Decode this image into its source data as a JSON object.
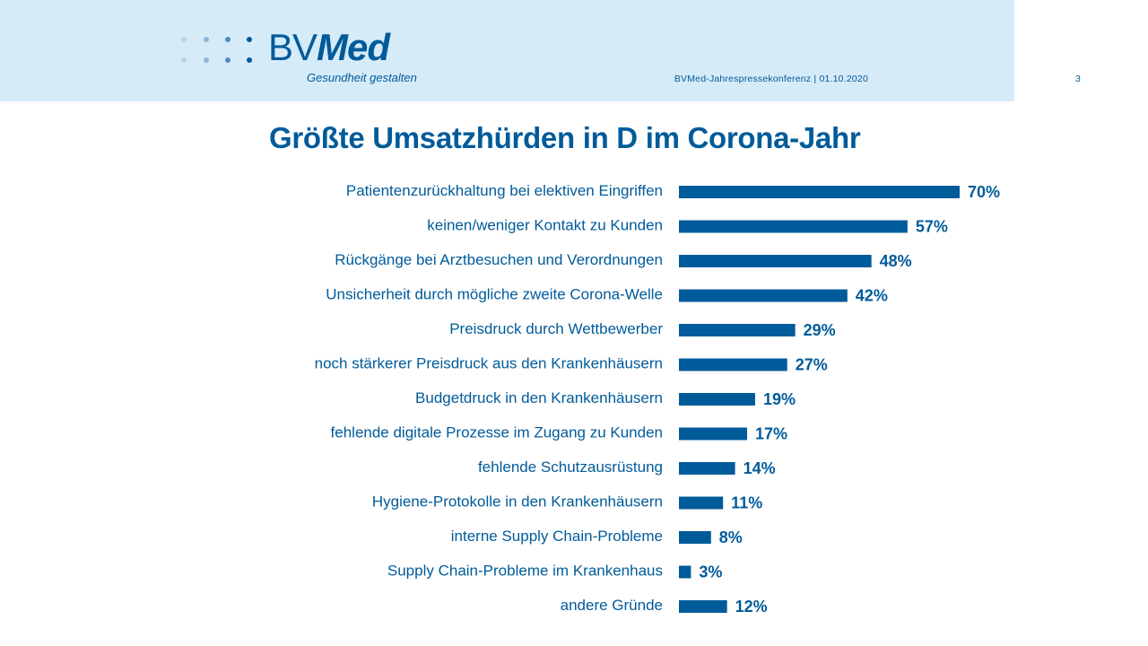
{
  "header": {
    "logo_prefix": "BV",
    "logo_suffix": "Med",
    "tagline": "Gesundheit gestalten",
    "event": "BVMed-Jahrespressekonferenz | 01.10.2020",
    "page_number": "3"
  },
  "colors": {
    "brand": "#005b9a",
    "header_band": "#d6ebf8",
    "bar": "#005b9a"
  },
  "chart_data": {
    "type": "bar",
    "orientation": "horizontal",
    "title": "Größte Umsatzhürden in D im Corona-Jahr",
    "xlabel": "",
    "ylabel": "",
    "unit": "%",
    "xlim": [
      0,
      70
    ],
    "grid": false,
    "legend": "none",
    "categories": [
      "Patientenzurückhaltung bei elektiven Eingriffen",
      "keinen/weniger Kontakt zu Kunden",
      "Rückgänge bei Arztbesuchen und Verordnungen",
      "Unsicherheit durch mögliche zweite Corona-Welle",
      "Preisdruck durch Wettbewerber",
      "noch stärkerer Preisdruck aus den Krankenhäusern",
      "Budgetdruck in den Krankenhäusern",
      "fehlende digitale Prozesse im Zugang zu Kunden",
      "fehlende Schutzausrüstung",
      "Hygiene-Protokolle in den Krankenhäusern",
      "interne Supply Chain-Probleme",
      "Supply Chain-Probleme im Krankenhaus",
      "andere Gründe"
    ],
    "values": [
      70,
      57,
      48,
      42,
      29,
      27,
      19,
      17,
      14,
      11,
      8,
      3,
      12
    ],
    "value_labels": [
      "70%",
      "57%",
      "48%",
      "42%",
      "29%",
      "27%",
      "19%",
      "17%",
      "14%",
      "11%",
      "8%",
      "3%",
      "12%"
    ]
  }
}
